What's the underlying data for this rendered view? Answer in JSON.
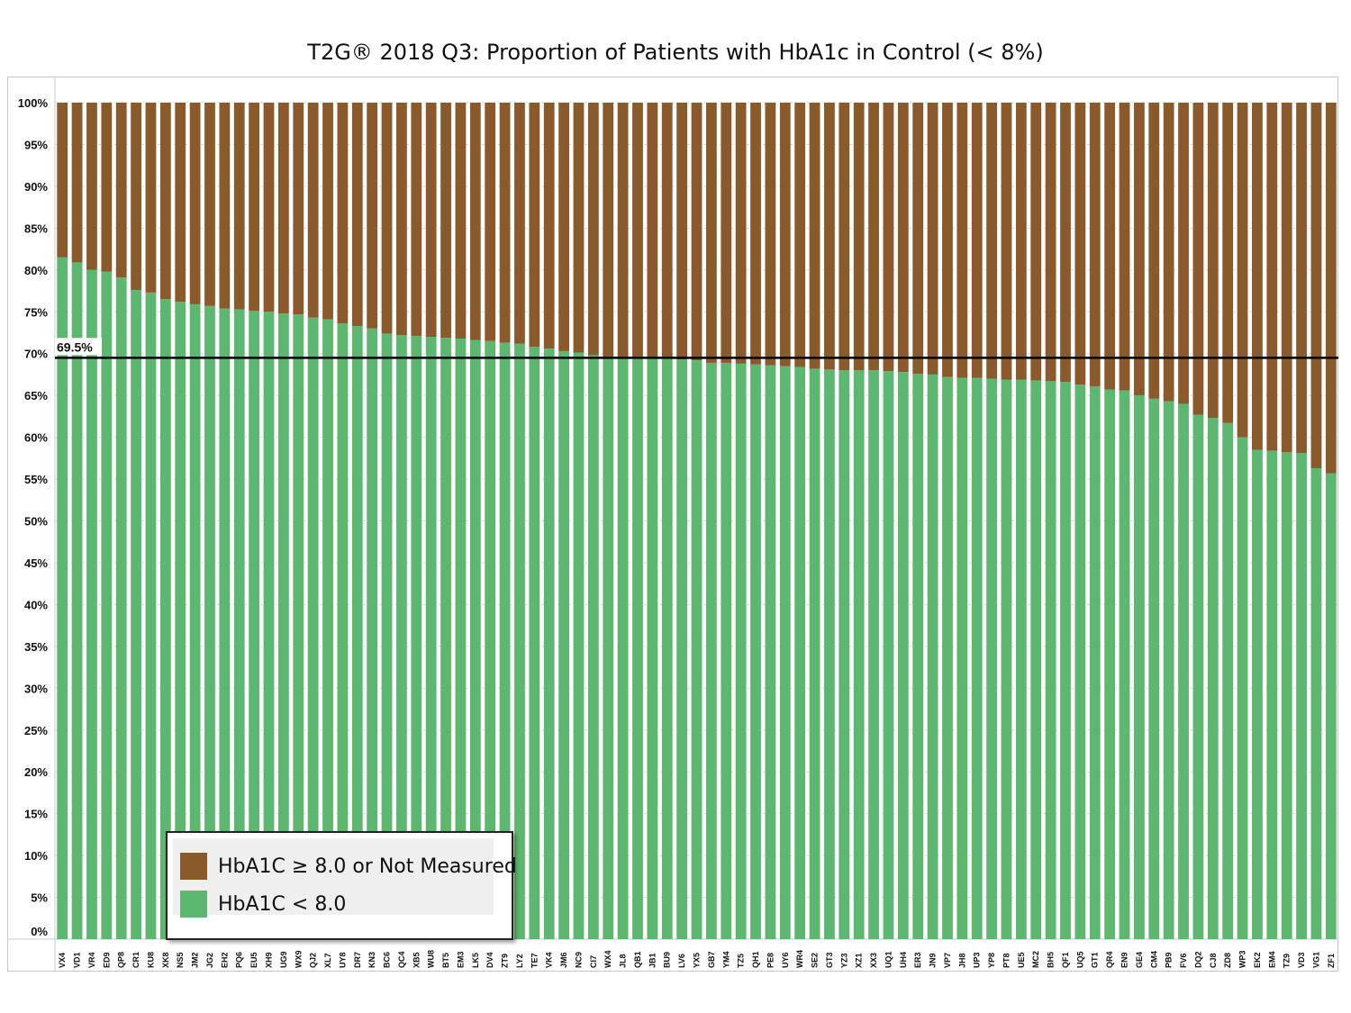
{
  "chart_data": {
    "type": "bar",
    "stacked": true,
    "title": "T2G® 2018 Q3: Proportion of Patients with HbA1c in Control (< 8%)",
    "xlabel": "",
    "ylabel": "",
    "ylim": [
      0,
      100
    ],
    "yticks": [
      "0%",
      "5%",
      "10%",
      "15%",
      "20%",
      "25%",
      "30%",
      "35%",
      "40%",
      "45%",
      "50%",
      "55%",
      "60%",
      "65%",
      "70%",
      "75%",
      "80%",
      "85%",
      "90%",
      "95%",
      "100%"
    ],
    "categories": [
      "VX4",
      "VD1",
      "VR4",
      "ED9",
      "QP8",
      "CR1",
      "KU8",
      "XK8",
      "NS5",
      "JM2",
      "JG2",
      "EH2",
      "PQ6",
      "EU5",
      "XH9",
      "UG9",
      "WX9",
      "QJ2",
      "XL7",
      "UY8",
      "DR7",
      "KN3",
      "BC6",
      "QC4",
      "XB5",
      "WU8",
      "BT5",
      "EM3",
      "LK5",
      "DV4",
      "ZT9",
      "LY2",
      "TE7",
      "VK4",
      "JM6",
      "NC9",
      "CI7",
      "WX4",
      "JL8",
      "QB1",
      "JB1",
      "BU9",
      "LV6",
      "YX5",
      "GB7",
      "YM4",
      "TZ5",
      "QH1",
      "PE8",
      "UY6",
      "WR4",
      "SE2",
      "GT3",
      "YZ3",
      "XZ1",
      "XX3",
      "UQ1",
      "UH4",
      "ER3",
      "JN9",
      "VP7",
      "JH8",
      "UP3",
      "YP8",
      "PT8",
      "UE5",
      "MC2",
      "BH5",
      "QF1",
      "UQ5",
      "GT1",
      "QR4",
      "EN9",
      "GE4",
      "CM4",
      "PB9",
      "FV6",
      "DQ2",
      "CJ8",
      "ZD8",
      "WP3",
      "EK2",
      "EM4",
      "TZ9",
      "VD3",
      "VG1",
      "ZF1"
    ],
    "series": [
      {
        "name": "HbA1C < 8.0",
        "color": "#5cb870",
        "values": [
          81.5,
          80.9,
          80.0,
          79.8,
          79.1,
          77.6,
          77.3,
          76.5,
          76.2,
          75.9,
          75.7,
          75.4,
          75.3,
          75.1,
          75.0,
          74.8,
          74.7,
          74.3,
          74.1,
          73.6,
          73.3,
          73.0,
          72.4,
          72.2,
          72.1,
          72.0,
          71.9,
          71.8,
          71.6,
          71.5,
          71.3,
          71.2,
          70.8,
          70.6,
          70.3,
          70.1,
          69.8,
          69.6,
          69.6,
          69.6,
          69.5,
          69.4,
          69.3,
          69.2,
          68.9,
          68.9,
          68.8,
          68.7,
          68.6,
          68.5,
          68.4,
          68.2,
          68.1,
          68.0,
          68.0,
          68.0,
          67.9,
          67.8,
          67.6,
          67.5,
          67.2,
          67.1,
          67.1,
          67.0,
          66.9,
          66.9,
          66.8,
          66.7,
          66.6,
          66.3,
          66.1,
          65.7,
          65.6,
          65.0,
          64.6,
          64.3,
          64.0,
          62.7,
          62.3,
          61.7,
          60.0,
          58.5,
          58.4,
          58.2,
          58.1,
          56.3,
          55.7
        ]
      },
      {
        "name": "HbA1C ≥ 8.0 or Not Measured",
        "color": "#8b5a2b",
        "values": [
          18.5,
          19.1,
          20.0,
          20.2,
          20.9,
          22.4,
          22.7,
          23.5,
          23.8,
          24.1,
          24.3,
          24.6,
          24.7,
          24.9,
          25.0,
          25.2,
          25.3,
          25.7,
          25.9,
          26.4,
          26.7,
          27.0,
          27.6,
          27.8,
          27.9,
          28.0,
          28.1,
          28.2,
          28.4,
          28.5,
          28.7,
          28.8,
          29.2,
          29.4,
          29.7,
          29.9,
          30.2,
          30.4,
          30.4,
          30.4,
          30.5,
          30.6,
          30.7,
          30.8,
          31.1,
          31.1,
          31.2,
          31.3,
          31.4,
          31.5,
          31.6,
          31.8,
          31.9,
          32.0,
          32.0,
          32.0,
          32.1,
          32.2,
          32.4,
          32.5,
          32.8,
          32.9,
          32.9,
          33.0,
          33.1,
          33.1,
          33.2,
          33.3,
          33.4,
          33.7,
          33.9,
          34.3,
          34.4,
          35.0,
          35.4,
          35.7,
          36.0,
          37.3,
          37.7,
          38.3,
          40.0,
          41.5,
          41.6,
          41.8,
          41.9,
          43.7,
          44.3
        ]
      }
    ],
    "reference_line": {
      "value": 69.5,
      "label": "69.5%",
      "color": "#000000"
    },
    "grid": true,
    "legend": {
      "placement": "bottom-left",
      "items": [
        {
          "label": "HbA1C ≥ 8.0 or Not Measured",
          "color": "#8b5a2b"
        },
        {
          "label": "HbA1C < 8.0",
          "color": "#5cb870"
        }
      ]
    }
  }
}
